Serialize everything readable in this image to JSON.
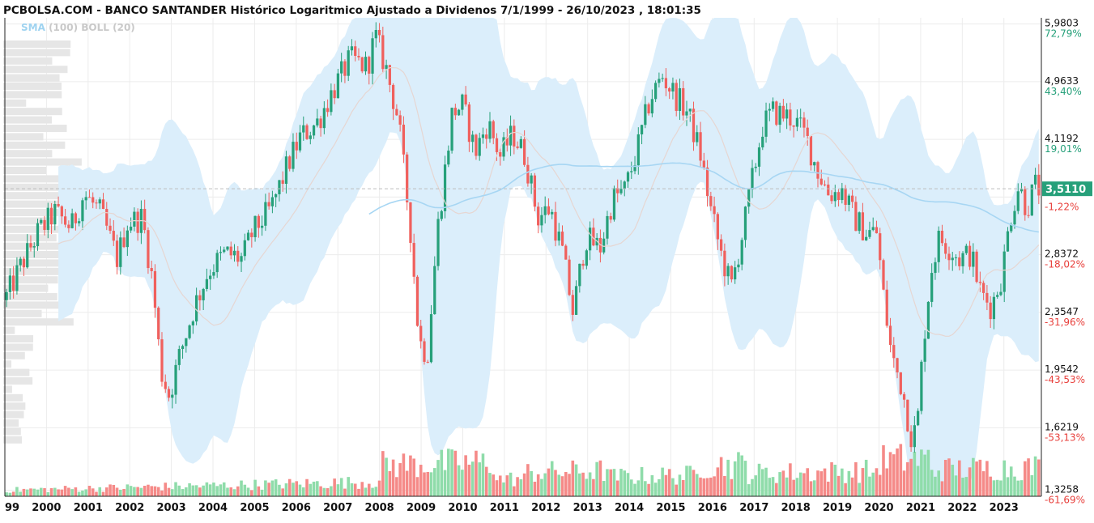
{
  "header": {
    "title": "PCBOLSA.COM - BANCO SANTANDER Histórico Logaritmico Ajustado a Dividenos 7/1/1999 - 26/10/2023 , 18:01:35"
  },
  "indicators": {
    "sma_label": "SMA",
    "sma_param": "(100)",
    "boll_label": "BOLL",
    "boll_param": "(20)"
  },
  "colors": {
    "up": "#26a07a",
    "down": "#f0605d",
    "vol_up": "#8fdcaa",
    "vol_down": "#f58a88",
    "band": "#dbeefb",
    "sma": "#a7d6f3",
    "boll_mid": "#e6d6d2",
    "grid": "#ececec",
    "price_badge": "#26a07a",
    "pct_up": "#26a07a",
    "pct_down": "#e8403c"
  },
  "chart_data": {
    "type": "candlestick",
    "scale": "log",
    "ylim": [
      1.3,
      6.1
    ],
    "x_range": [
      1999.0,
      2023.9
    ],
    "x_ticks": [
      "99",
      "2000",
      "2001",
      "2002",
      "2003",
      "2004",
      "2005",
      "2006",
      "2007",
      "2008",
      "2009",
      "2010",
      "2011",
      "2012",
      "2013",
      "2014",
      "2015",
      "2016",
      "2017",
      "2018",
      "2019",
      "2020",
      "2021",
      "2022",
      "2023"
    ],
    "y_ticks": [
      {
        "price": 5.9803,
        "label": "5,9803",
        "pct": "72,79%"
      },
      {
        "price": 4.9633,
        "label": "4,9633",
        "pct": "43,40%"
      },
      {
        "price": 4.1192,
        "label": "4,1192",
        "pct": "19,01%"
      },
      {
        "price": 3.4186,
        "label": "",
        "pct": "-1,22%"
      },
      {
        "price": 2.8372,
        "label": "2,8372",
        "pct": "-18,02%"
      },
      {
        "price": 2.3547,
        "label": "2,3547",
        "pct": "-31,96%"
      },
      {
        "price": 1.9542,
        "label": "1,9542",
        "pct": "-43,53%"
      },
      {
        "price": 1.6219,
        "label": "1,6219",
        "pct": "-53,13%"
      },
      {
        "price": 1.3258,
        "label": "1,3258",
        "pct": "-61,69%"
      }
    ],
    "last_price": {
      "value": 3.511,
      "label": "3,5110"
    },
    "price_path": [
      [
        1999.0,
        2.45
      ],
      [
        1999.4,
        2.75
      ],
      [
        1999.8,
        3.05
      ],
      [
        2000.2,
        3.25
      ],
      [
        2000.6,
        3.1
      ],
      [
        2000.9,
        3.45
      ],
      [
        2001.3,
        3.25
      ],
      [
        2001.7,
        2.8
      ],
      [
        2001.95,
        3.15
      ],
      [
        2002.3,
        3.2
      ],
      [
        2002.55,
        2.6
      ],
      [
        2002.75,
        1.95
      ],
      [
        2002.95,
        1.8
      ],
      [
        2003.2,
        2.05
      ],
      [
        2003.55,
        2.4
      ],
      [
        2003.9,
        2.7
      ],
      [
        2004.3,
        2.85
      ],
      [
        2004.7,
        2.8
      ],
      [
        2004.95,
        3.05
      ],
      [
        2005.4,
        3.3
      ],
      [
        2005.8,
        3.8
      ],
      [
        2006.1,
        4.15
      ],
      [
        2006.5,
        4.35
      ],
      [
        2006.9,
        4.85
      ],
      [
        2007.3,
        5.35
      ],
      [
        2007.7,
        5.2
      ],
      [
        2007.9,
        5.75
      ],
      [
        2008.15,
        5.2
      ],
      [
        2008.45,
        4.4
      ],
      [
        2008.75,
        3.05
      ],
      [
        2008.95,
        2.15
      ],
      [
        2009.15,
        2.05
      ],
      [
        2009.4,
        3.1
      ],
      [
        2009.75,
        4.5
      ],
      [
        2010.0,
        4.6
      ],
      [
        2010.3,
        3.95
      ],
      [
        2010.6,
        4.35
      ],
      [
        2010.9,
        3.9
      ],
      [
        2011.2,
        4.2
      ],
      [
        2011.5,
        3.9
      ],
      [
        2011.8,
        3.2
      ],
      [
        2012.1,
        3.3
      ],
      [
        2012.4,
        2.85
      ],
      [
        2012.65,
        2.35
      ],
      [
        2012.95,
        3.0
      ],
      [
        2013.3,
        2.9
      ],
      [
        2013.6,
        3.4
      ],
      [
        2013.9,
        3.5
      ],
      [
        2014.2,
        4.0
      ],
      [
        2014.5,
        4.7
      ],
      [
        2014.8,
        5.05
      ],
      [
        2015.1,
        4.75
      ],
      [
        2015.4,
        4.5
      ],
      [
        2015.7,
        3.95
      ],
      [
        2015.95,
        3.3
      ],
      [
        2016.2,
        2.85
      ],
      [
        2016.45,
        2.55
      ],
      [
        2016.75,
        3.1
      ],
      [
        2016.95,
        3.6
      ],
      [
        2017.2,
        4.3
      ],
      [
        2017.45,
        4.5
      ],
      [
        2017.75,
        4.45
      ],
      [
        2017.95,
        4.4
      ],
      [
        2018.25,
        4.15
      ],
      [
        2018.5,
        3.75
      ],
      [
        2018.8,
        3.45
      ],
      [
        2019.1,
        3.5
      ],
      [
        2019.4,
        3.2
      ],
      [
        2019.7,
        3.05
      ],
      [
        2019.95,
        3.05
      ],
      [
        2020.1,
        2.5
      ],
      [
        2020.3,
        2.05
      ],
      [
        2020.55,
        1.85
      ],
      [
        2020.8,
        1.55
      ],
      [
        2020.95,
        1.7
      ],
      [
        2021.05,
        2.1
      ],
      [
        2021.25,
        2.7
      ],
      [
        2021.45,
        3.0
      ],
      [
        2021.7,
        2.9
      ],
      [
        2021.95,
        2.8
      ],
      [
        2022.2,
        2.85
      ],
      [
        2022.45,
        2.5
      ],
      [
        2022.7,
        2.4
      ],
      [
        2022.95,
        2.65
      ],
      [
        2023.15,
        3.2
      ],
      [
        2023.35,
        3.55
      ],
      [
        2023.55,
        3.3
      ],
      [
        2023.75,
        3.55
      ],
      [
        2023.85,
        3.51
      ]
    ]
  }
}
